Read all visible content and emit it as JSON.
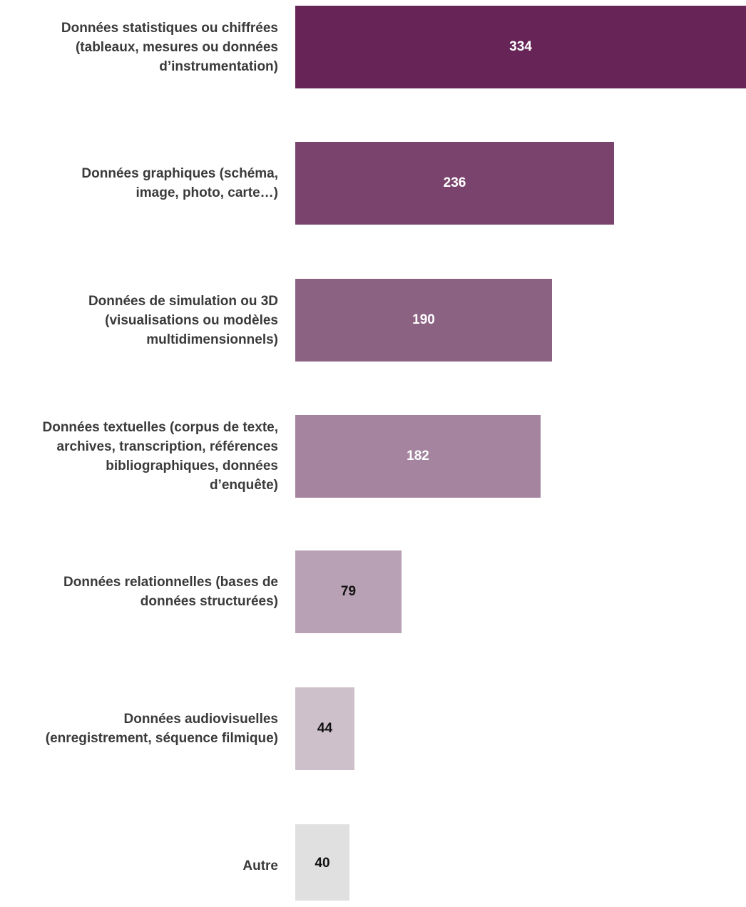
{
  "chart_data": {
    "type": "bar",
    "orientation": "horizontal",
    "categories": [
      "Données statistiques ou chiffrées\n(tableaux, mesures ou données\nd’instrumentation)",
      "Données graphiques (schéma,\nimage, photo, carte…)",
      "Données de simulation ou 3D\n(visualisations ou modèles\nmultidimensionnels)",
      "Données textuelles (corpus de texte,\narchives, transcription, références\nbibliographiques, données\nd’enquête)",
      "Données relationnelles (bases de\ndonnées structurées)",
      "Données audiovisuelles\n(enregistrement, séquence filmique)",
      "Autre"
    ],
    "values": [
      334,
      236,
      190,
      182,
      79,
      44,
      40
    ],
    "value_labels": [
      "334",
      "236",
      "190",
      "182",
      "79",
      "44",
      "40"
    ],
    "colors": [
      "#662457",
      "#7a436e",
      "#8c6283",
      "#a4849e",
      "#b9a1b5",
      "#cdc0cb",
      "#e0e0e0"
    ],
    "label_colors": [
      "#ffffff",
      "#ffffff",
      "#ffffff",
      "#ffffff",
      "#111111",
      "#111111",
      "#111111"
    ],
    "xlim": [
      0,
      334
    ],
    "grid": false,
    "legend": "none"
  }
}
